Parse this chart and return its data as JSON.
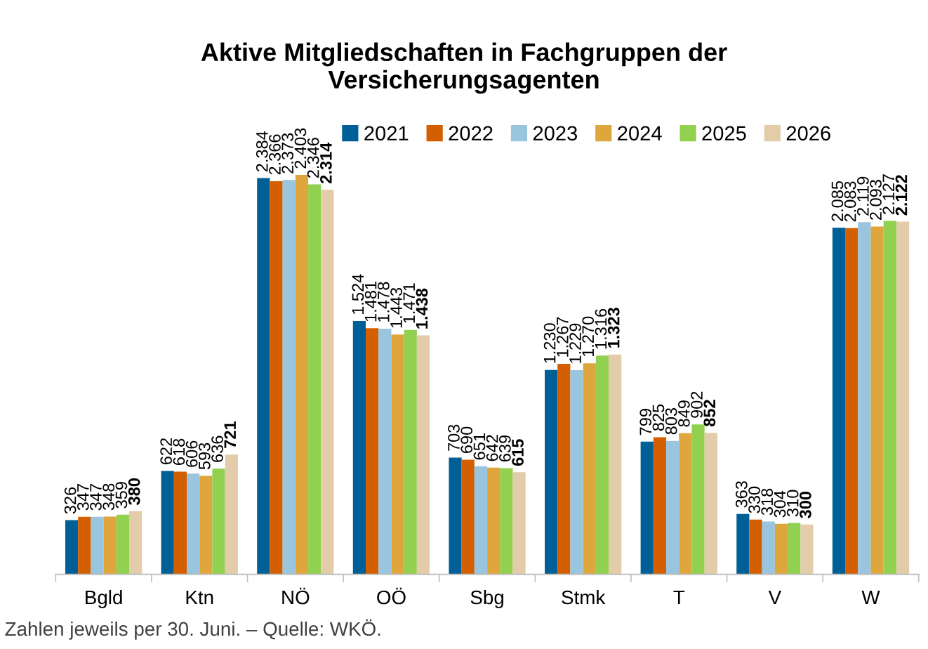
{
  "chart_data": {
    "type": "bar",
    "title": "Aktive Mitgliedschaften in Fachgruppen der\nVersicherungsagenten",
    "categories": [
      "Bgld",
      "Ktn",
      "NÖ",
      "OÖ",
      "Sbg",
      "Stmk",
      "T",
      "V",
      "W"
    ],
    "series": [
      {
        "name": "2021",
        "color": "#005f96",
        "values": [
          326,
          622,
          2384,
          1524,
          703,
          1230,
          799,
          363,
          2085
        ],
        "value_labels": [
          "326",
          "622",
          "2.384",
          "1.524",
          "703",
          "1.230",
          "799",
          "363",
          "2.085"
        ]
      },
      {
        "name": "2022",
        "color": "#d45f00",
        "values": [
          347,
          618,
          2366,
          1481,
          690,
          1267,
          825,
          330,
          2083
        ],
        "value_labels": [
          "347",
          "618",
          "2.366",
          "1.481",
          "690",
          "1.267",
          "825",
          "330",
          "2.083"
        ]
      },
      {
        "name": "2023",
        "color": "#99c5de",
        "values": [
          347,
          606,
          2373,
          1478,
          651,
          1229,
          803,
          318,
          2119
        ],
        "value_labels": [
          "347",
          "606",
          "2.373",
          "1.478",
          "651",
          "1.229",
          "803",
          "318",
          "2.119"
        ]
      },
      {
        "name": "2024",
        "color": "#dea63c",
        "values": [
          348,
          593,
          2403,
          1443,
          642,
          1270,
          849,
          304,
          2093
        ],
        "value_labels": [
          "348",
          "593",
          "2.403",
          "1.443",
          "642",
          "1.270",
          "849",
          "304",
          "2.093"
        ]
      },
      {
        "name": "2025",
        "color": "#92d050",
        "values": [
          359,
          636,
          2346,
          1471,
          639,
          1316,
          902,
          310,
          2127
        ],
        "value_labels": [
          "359",
          "636",
          "2.346",
          "1.471",
          "639",
          "1.316",
          "902",
          "310",
          "2.127"
        ]
      },
      {
        "name": "2026",
        "color": "#e2cca9",
        "values": [
          380,
          721,
          2314,
          1438,
          615,
          1323,
          852,
          300,
          2122
        ],
        "value_labels": [
          "380",
          "721",
          "2.314",
          "1.438",
          "615",
          "1.323",
          "852",
          "300",
          "2.122"
        ]
      }
    ],
    "legend": "top right",
    "grid": false,
    "annotations": [
      "Zahlen jeweils per 30. Juni. – Quelle: WKÖ."
    ]
  }
}
